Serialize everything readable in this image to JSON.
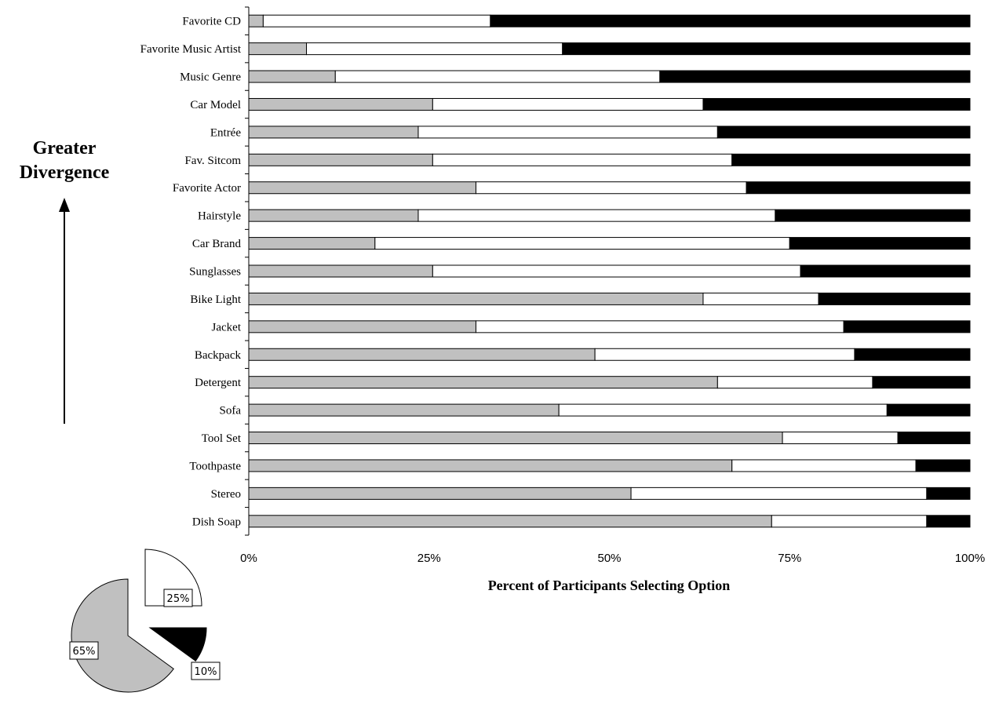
{
  "side_label": {
    "line1": "Greater",
    "line2": "Divergence"
  },
  "chart_data": [
    {
      "type": "bar",
      "orientation": "horizontal",
      "stacked": true,
      "percent_stacked": true,
      "categories": [
        "Favorite CD",
        "Favorite Music Artist",
        "Music Genre",
        "Car Model",
        "Entrée",
        "Fav. Sitcom",
        "Favorite Actor",
        "Hairstyle",
        "Car Brand",
        "Sunglasses",
        "Bike Light",
        "Jacket",
        "Backpack",
        "Detergent",
        "Sofa",
        "Tool Set",
        "Toothpaste",
        "Stereo",
        "Dish Soap"
      ],
      "series": [
        {
          "color": "#c0c0c0",
          "values": [
            2,
            8,
            12,
            25.5,
            23.5,
            25.5,
            31.5,
            23.5,
            17.5,
            25.5,
            63,
            31.5,
            48,
            65,
            43,
            74,
            67,
            53,
            72.5
          ]
        },
        {
          "color": "#ffffff",
          "values": [
            31.5,
            35.5,
            45,
            37.5,
            41.5,
            41.5,
            37.5,
            49.5,
            57.5,
            51,
            16,
            51,
            36,
            21.5,
            45.5,
            16,
            25.5,
            41,
            21.5
          ]
        },
        {
          "color": "#000000",
          "values": [
            66.5,
            56.5,
            43,
            37,
            35,
            33,
            31,
            27,
            25,
            23.5,
            21,
            17.5,
            16,
            13.5,
            11.5,
            10,
            7.5,
            6,
            6
          ]
        }
      ],
      "xlim": [
        0,
        100
      ],
      "x_ticks": [
        "0%",
        "25%",
        "50%",
        "75%",
        "100%"
      ],
      "xlabel": "Percent of Participants Selecting Option",
      "grid": false
    },
    {
      "type": "pie",
      "slices": [
        {
          "label": "65%",
          "value": 65,
          "color": "#c0c0c0"
        },
        {
          "label": "25%",
          "value": 25,
          "color": "#ffffff"
        },
        {
          "label": "10%",
          "value": 10,
          "color": "#000000"
        }
      ],
      "exploded": true
    }
  ]
}
